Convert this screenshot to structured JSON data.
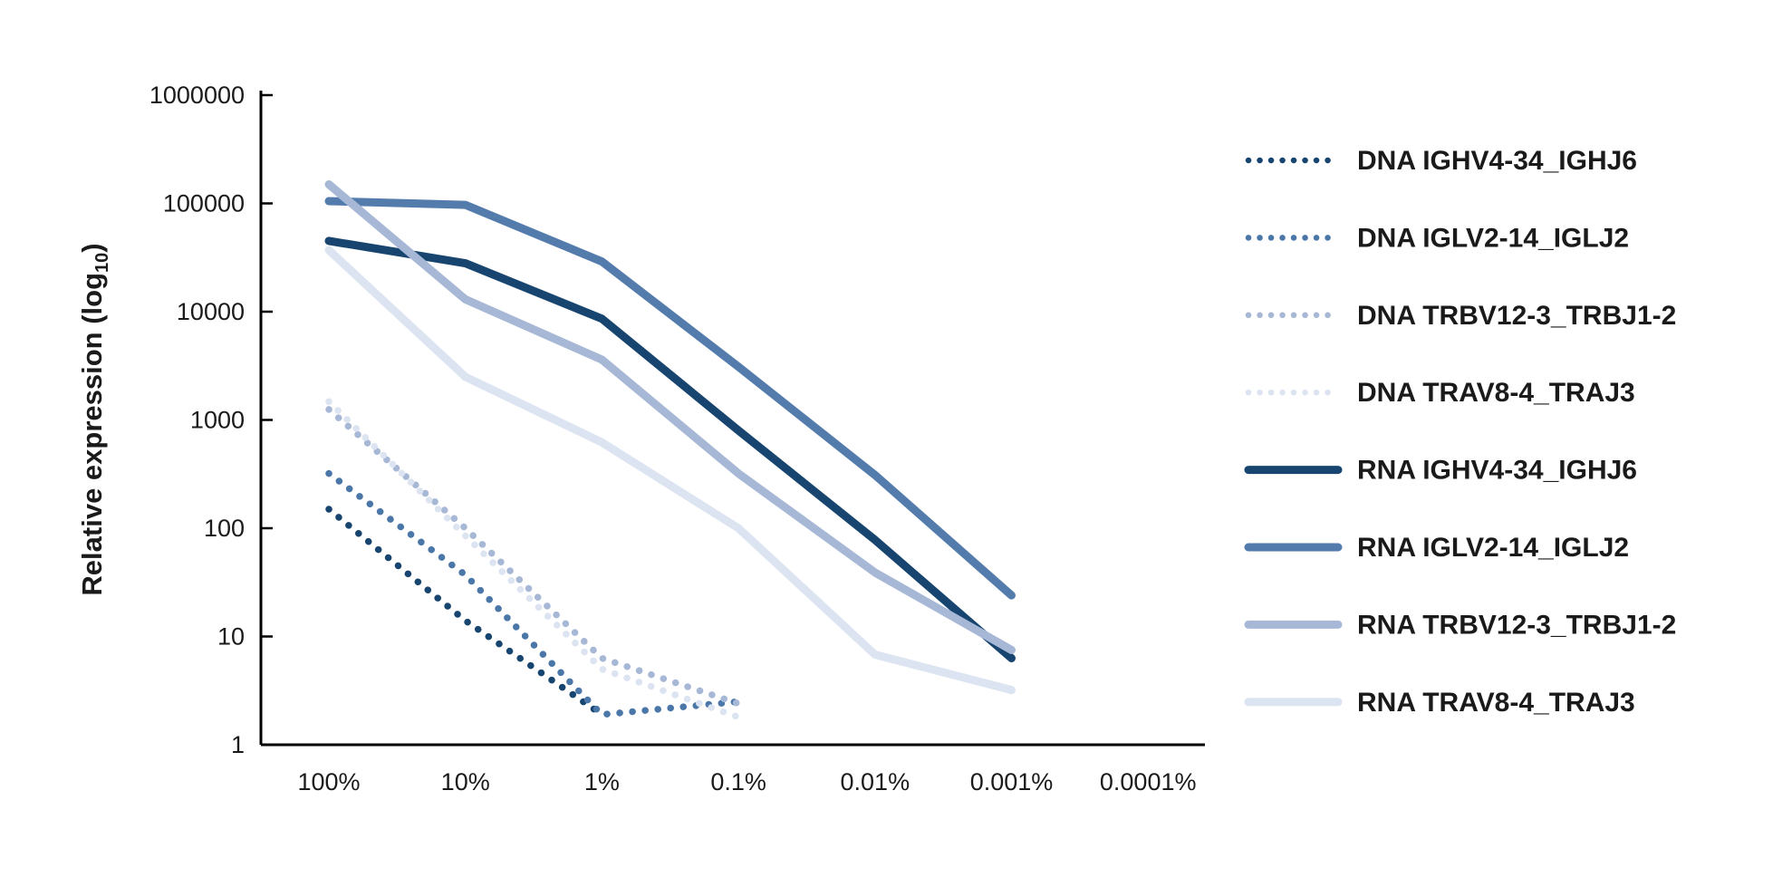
{
  "chart_data": {
    "type": "line",
    "title": "",
    "ylabel": "Relative expression (log10)",
    "ylabel_main": "Relative expression (log",
    "ylabel_sub": "10",
    "ylabel_close": ")",
    "xlabel": "",
    "y_scale": "log10",
    "ylim": [
      1,
      1000000
    ],
    "grid": false,
    "legend_position": "right",
    "x_categories": [
      "100%",
      "10%",
      "1%",
      "0.1%",
      "0.01%",
      "0.001%",
      "0.0001%"
    ],
    "y_tick_labels": [
      "1",
      "10",
      "100",
      "1000",
      "10000",
      "100000",
      "1000000"
    ],
    "series": [
      {
        "name": "DNA IGHV4-34_IGHJ6",
        "style": "dotted",
        "color": "#17456F",
        "values": [
          150,
          14,
          1.9,
          null,
          null,
          null,
          null
        ]
      },
      {
        "name": "DNA IGLV2-14_IGLJ2",
        "style": "dotted",
        "color": "#4A77A8",
        "values": [
          320,
          37,
          1.9,
          2.5,
          null,
          null,
          null
        ]
      },
      {
        "name": "DNA TRBV12-3_TRBJ1-2",
        "style": "dotted",
        "color": "#A7B8D6",
        "values": [
          1250,
          100,
          6.3,
          2.4,
          null,
          null,
          null
        ]
      },
      {
        "name": "DNA TRAV8-4_TRAJ3",
        "style": "dotted",
        "color": "#DCE3F1",
        "values": [
          1480,
          85,
          5,
          1.8,
          null,
          null,
          null
        ]
      },
      {
        "name": "RNA IGHV4-34_IGHJ6",
        "style": "solid",
        "color": "#17456F",
        "values": [
          45000,
          28000,
          8600,
          800,
          78,
          6.3,
          null
        ]
      },
      {
        "name": "RNA IGLV2-14_IGLJ2",
        "style": "solid",
        "color": "#537CAD",
        "values": [
          105000,
          97000,
          29000,
          3100,
          310,
          24,
          null
        ]
      },
      {
        "name": "RNA TRBV12-3_TRBJ1-2",
        "style": "solid",
        "color": "#A7B8D6",
        "values": [
          150000,
          13000,
          3600,
          320,
          39,
          7.5,
          null
        ]
      },
      {
        "name": "RNA TRAV8-4_TRAJ3",
        "style": "solid",
        "color": "#DCE3F1",
        "values": [
          37000,
          2500,
          620,
          100,
          6.8,
          3.2,
          null
        ]
      }
    ]
  }
}
